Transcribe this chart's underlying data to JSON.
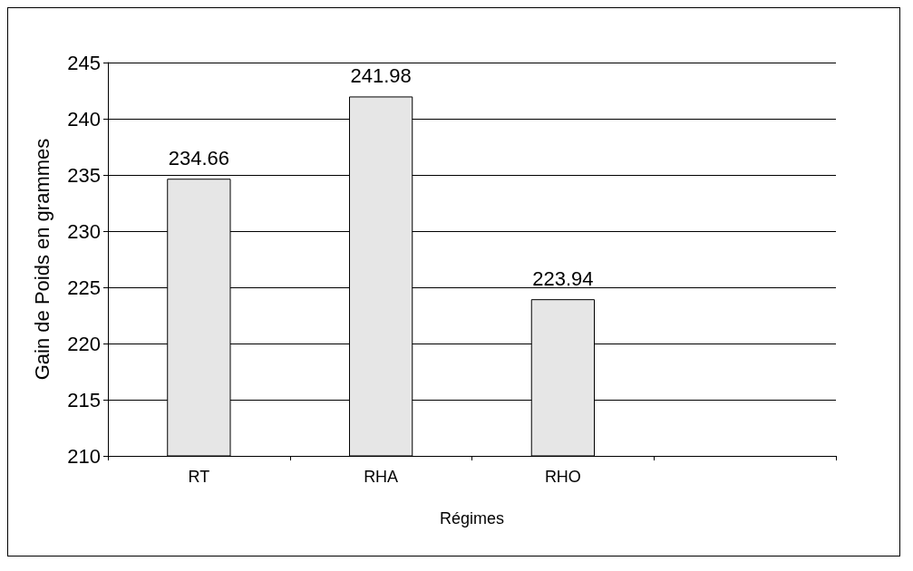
{
  "chart_data": {
    "type": "bar",
    "xlabel": "Régimes",
    "ylabel": "Gain de Poids en grammes",
    "categories": [
      "RT",
      "RHA",
      "RHO",
      null
    ],
    "values": [
      234.66,
      241.98,
      223.94,
      null
    ],
    "color": "#e6e6e6",
    "ylim": [
      210,
      245
    ],
    "yticks": [
      210,
      215,
      220,
      225,
      230,
      235,
      240,
      245
    ],
    "grid": "y",
    "data_labels": true
  }
}
